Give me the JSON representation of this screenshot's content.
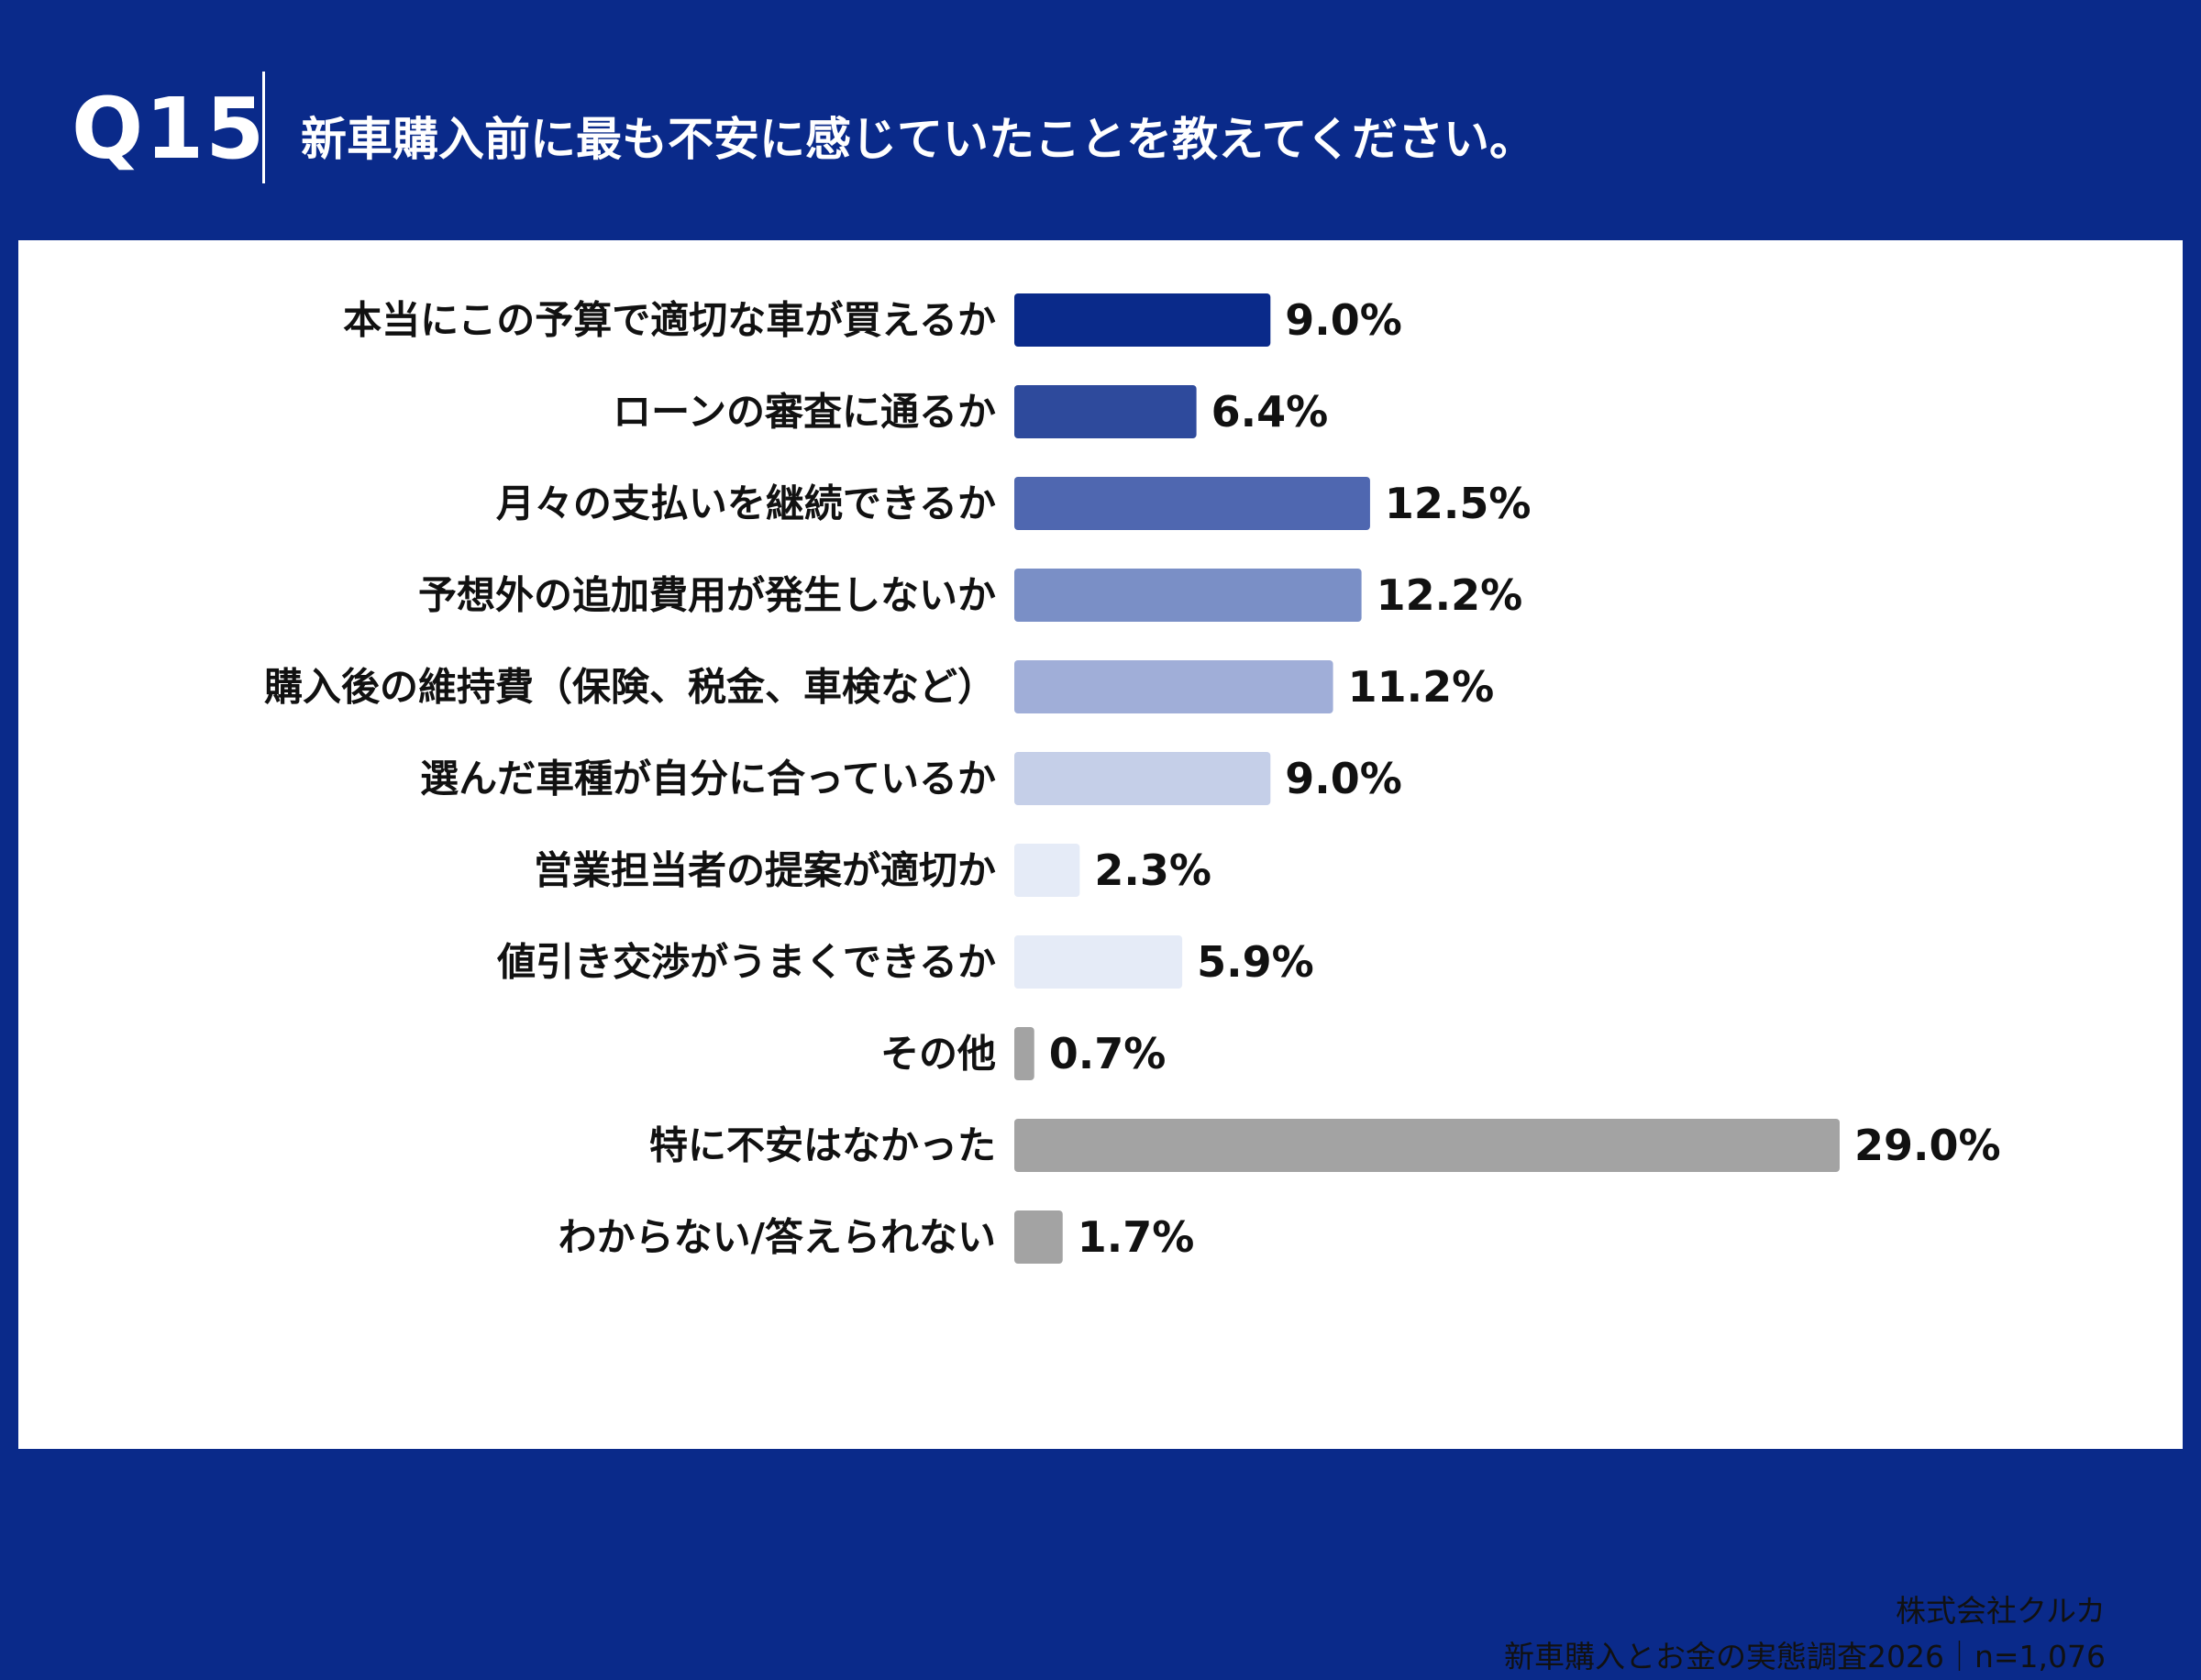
{
  "header": {
    "question_number": "Q15",
    "question_text": "新車購入前に最も不安に感じていたことを教えてください。"
  },
  "source": {
    "company": "株式会社クルカ",
    "survey": "新車購入とお金の実態調査2026｜n=1,076"
  },
  "colors": {
    "header_bg": "#0a2a8a",
    "card_bg": "#ffffff"
  },
  "chart_data": {
    "type": "bar",
    "orientation": "horizontal",
    "title": "",
    "xlabel": "",
    "ylabel": "",
    "value_suffix": "%",
    "categories": [
      "本当にこの予算で適切な車が買えるか",
      "ローンの審査に通るか",
      "月々の支払いを継続できるか",
      "予想外の追加費用が発生しないか",
      "購入後の維持費（保険、税金、車検など）",
      "選んだ車種が自分に合っているか",
      "営業担当者の提案が適切か",
      "値引き交渉がうまくできるか",
      "その他",
      "特に不安はなかった",
      "わからない/答えられない"
    ],
    "values": [
      9.0,
      6.4,
      12.5,
      12.2,
      11.2,
      9.0,
      2.3,
      5.9,
      0.7,
      29.0,
      1.7
    ],
    "value_labels": [
      "9.0%",
      "6.4%",
      "12.5%",
      "12.2%",
      "11.2%",
      "9.0%",
      "2.3%",
      "5.9%",
      "0.7%",
      "29.0%",
      "1.7%"
    ],
    "bar_colors": [
      "#0a2a8a",
      "#2e4a9c",
      "#4f67b0",
      "#7a8fc6",
      "#a0aed8",
      "#c5cfe8",
      "#e5ebf7",
      "#e5ebf7",
      "#a3a3a3",
      "#a3a3a3",
      "#a3a3a3"
    ],
    "xlim": [
      0,
      29.0
    ],
    "grid": false,
    "legend": "none"
  }
}
